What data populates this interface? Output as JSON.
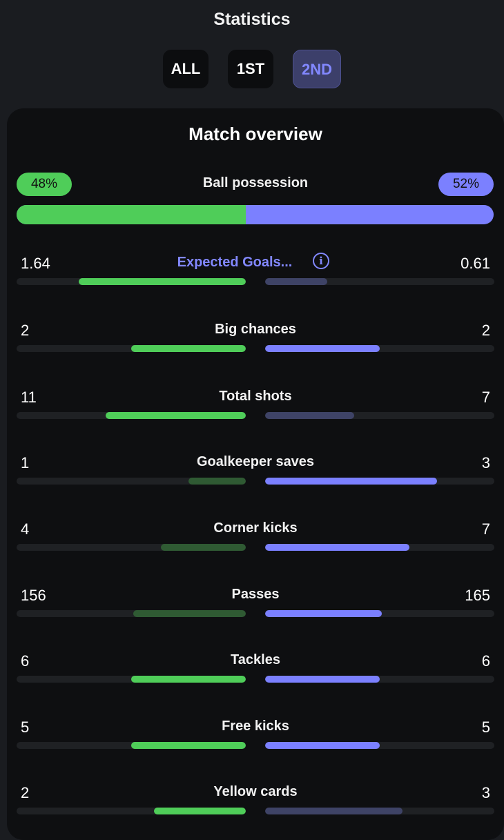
{
  "header": {
    "title": "Statistics"
  },
  "periods": [
    {
      "label": "ALL",
      "active": false
    },
    {
      "label": "1ST",
      "active": false
    },
    {
      "label": "2ND",
      "active": true
    }
  ],
  "card": {
    "title": "Match overview"
  },
  "possession": {
    "label": "Ball possession",
    "home": "48%",
    "away": "52%",
    "home_fraction": 0.48
  },
  "colors": {
    "home": "#4fcd59",
    "home_dim": "#2f5a33",
    "away": "#7b80ff",
    "away_dim": "#3e4366",
    "track": "#1f2124"
  },
  "stats": [
    {
      "label": "Expected Goals...",
      "home": "1.64",
      "away": "0.61",
      "home_frac": 0.73,
      "away_frac": 0.27,
      "home_highlight": true,
      "away_highlight": false,
      "link": true,
      "info_icon": "info-icon"
    },
    {
      "label": "Big chances",
      "home": "2",
      "away": "2",
      "home_frac": 0.5,
      "away_frac": 0.5,
      "home_highlight": true,
      "away_highlight": true
    },
    {
      "label": "Total shots",
      "home": "11",
      "away": "7",
      "home_frac": 0.61,
      "away_frac": 0.39,
      "home_highlight": true,
      "away_highlight": false
    },
    {
      "label": "Goalkeeper saves",
      "home": "1",
      "away": "3",
      "home_frac": 0.25,
      "away_frac": 0.75,
      "home_highlight": false,
      "away_highlight": true
    },
    {
      "label": "Corner kicks",
      "home": "4",
      "away": "7",
      "home_frac": 0.37,
      "away_frac": 0.63,
      "home_highlight": false,
      "away_highlight": true
    },
    {
      "label": "Passes",
      "home": "156",
      "away": "165",
      "home_frac": 0.49,
      "away_frac": 0.51,
      "home_highlight": false,
      "away_highlight": true
    },
    {
      "label": "Tackles",
      "home": "6",
      "away": "6",
      "home_frac": 0.5,
      "away_frac": 0.5,
      "home_highlight": true,
      "away_highlight": true
    },
    {
      "label": "Free kicks",
      "home": "5",
      "away": "5",
      "home_frac": 0.5,
      "away_frac": 0.5,
      "home_highlight": true,
      "away_highlight": true
    },
    {
      "label": "Yellow cards",
      "home": "2",
      "away": "3",
      "home_frac": 0.4,
      "away_frac": 0.6,
      "home_highlight": true,
      "away_highlight": false
    }
  ]
}
